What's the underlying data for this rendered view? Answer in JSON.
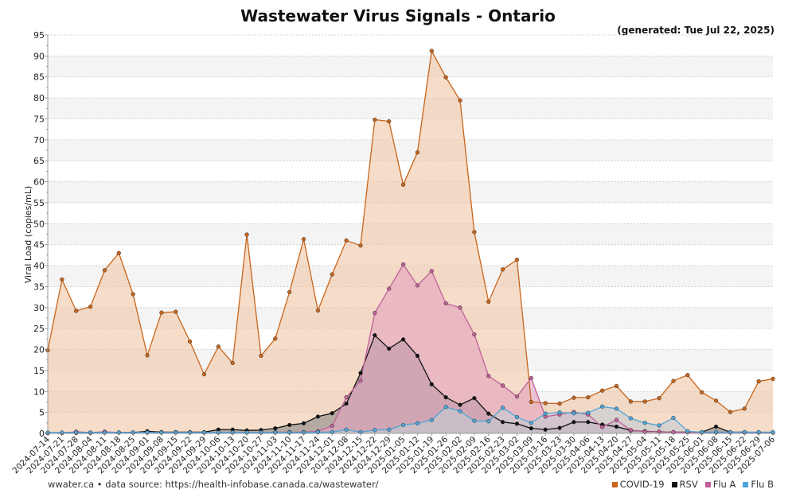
{
  "chart_data": {
    "type": "area",
    "title": "Wastewater Virus Signals - Ontario",
    "generated_note": "(generated: Tue Jul 22, 2025)",
    "ylabel": "Viral Load (copies/mL)",
    "ylim": [
      0,
      95
    ],
    "yticks": [
      0,
      5,
      10,
      15,
      20,
      25,
      30,
      35,
      40,
      45,
      50,
      55,
      60,
      65,
      70,
      75,
      80,
      85,
      90,
      95
    ],
    "grid": true,
    "legend_position": "bottom-right",
    "x": [
      "2024-07-14",
      "2024-07-21",
      "2024-07-28",
      "2024-08-04",
      "2024-08-11",
      "2024-08-18",
      "2024-08-25",
      "2024-09-01",
      "2024-09-08",
      "2024-09-15",
      "2024-09-22",
      "2024-09-29",
      "2024-10-06",
      "2024-10-13",
      "2024-10-20",
      "2024-10-27",
      "2024-11-03",
      "2024-11-10",
      "2024-11-17",
      "2024-11-24",
      "2024-12-01",
      "2024-12-08",
      "2024-12-15",
      "2024-12-22",
      "2024-12-29",
      "2025-01-05",
      "2025-01-12",
      "2025-01-19",
      "2025-01-26",
      "2025-02-02",
      "2025-02-09",
      "2025-02-16",
      "2025-02-23",
      "2025-03-02",
      "2025-03-09",
      "2025-03-16",
      "2025-03-23",
      "2025-03-30",
      "2025-04-06",
      "2025-04-13",
      "2025-04-20",
      "2025-04-27",
      "2025-05-04",
      "2025-05-11",
      "2025-05-18",
      "2025-05-25",
      "2025-06-01",
      "2025-06-08",
      "2025-06-15",
      "2025-06-22",
      "2025-06-29",
      "2025-07-06"
    ],
    "series": [
      {
        "name": "COVID-19",
        "color": "#c8651b",
        "fill": "#f0c8a8",
        "values": [
          19.8,
          36.7,
          29.2,
          30.2,
          38.9,
          43.0,
          33.2,
          18.6,
          28.8,
          29.0,
          21.9,
          14.1,
          20.7,
          16.8,
          47.4,
          18.5,
          22.6,
          33.7,
          46.3,
          29.3,
          37.9,
          46.0,
          44.8,
          74.8,
          74.4,
          59.3,
          67.0,
          91.2,
          84.9,
          79.4,
          48.0,
          31.4,
          39.1,
          41.4,
          7.5,
          7.2,
          7.1,
          8.5,
          8.6,
          10.2,
          11.3,
          7.6,
          7.6,
          8.4,
          12.5,
          13.9,
          9.8,
          7.8,
          5.1,
          5.9,
          12.4,
          13.0
        ]
      },
      {
        "name": "RSV",
        "color": "#111111",
        "fill": "#8a8a8a",
        "values": [
          0.1,
          0.1,
          0.1,
          0.1,
          0.2,
          0.2,
          0.2,
          0.5,
          0.3,
          0.3,
          0.3,
          0.3,
          0.9,
          0.9,
          0.7,
          0.8,
          1.2,
          2.0,
          2.4,
          4.0,
          4.8,
          7.1,
          14.4,
          23.4,
          20.2,
          22.4,
          18.5,
          11.7,
          8.6,
          6.8,
          8.4,
          4.7,
          2.7,
          2.3,
          1.2,
          0.9,
          1.3,
          2.7,
          2.7,
          2.1,
          1.6,
          0.7,
          0.5,
          0.4,
          0.3,
          0.3,
          0.3,
          1.6,
          0.3,
          0.3,
          0.2,
          0.2
        ]
      },
      {
        "name": "Flu A",
        "color": "#c0609a",
        "fill": "#e3a3bf",
        "values": [
          0.1,
          0.1,
          0.4,
          0.2,
          0.4,
          0.2,
          0.2,
          0.2,
          0.2,
          0.2,
          0.2,
          0.2,
          0.2,
          0.2,
          0.2,
          0.2,
          0.3,
          0.3,
          0.3,
          0.5,
          1.8,
          8.6,
          12.6,
          28.7,
          34.5,
          40.3,
          35.3,
          38.7,
          31.0,
          30.0,
          23.6,
          13.7,
          11.4,
          8.8,
          13.2,
          4.0,
          4.5,
          5.1,
          4.5,
          1.5,
          3.2,
          0.8,
          0.4,
          0.4,
          0.3,
          0.3,
          0.2,
          0.2,
          0.2,
          0.2,
          0.2,
          0.2
        ]
      },
      {
        "name": "Flu B",
        "color": "#4ea5d9",
        "fill": "#c3ccd4",
        "values": [
          0.2,
          0.2,
          0.2,
          0.2,
          0.2,
          0.2,
          0.2,
          0.2,
          0.2,
          0.2,
          0.2,
          0.2,
          0.2,
          0.2,
          0.2,
          0.2,
          0.2,
          0.2,
          0.2,
          0.3,
          0.3,
          0.9,
          0.3,
          0.8,
          0.9,
          2.0,
          2.4,
          3.2,
          6.3,
          5.3,
          3.0,
          2.9,
          6.1,
          3.9,
          2.5,
          4.7,
          5.0,
          4.8,
          4.9,
          6.4,
          5.9,
          3.6,
          2.5,
          1.9,
          3.7,
          0.5,
          0.3,
          0.3,
          0.3,
          0.3,
          0.3,
          0.3
        ]
      }
    ],
    "footer": "wwater.ca • data source: https://health-infobase.canada.ca/wastewater/"
  }
}
